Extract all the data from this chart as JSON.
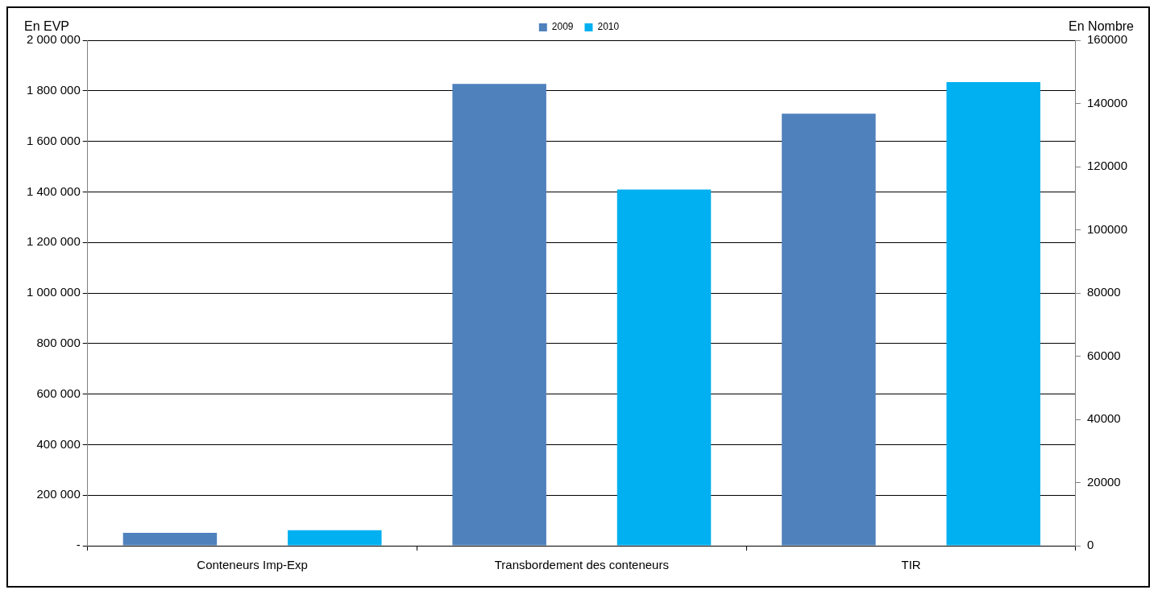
{
  "chart_data": {
    "type": "bar",
    "ylabel": "En EVP",
    "y2label": "En Nombre",
    "categories": [
      "Conteneurs Imp-Exp",
      "Transbordement des conteneurs",
      "TIR"
    ],
    "series": [
      {
        "name": "2009",
        "color": "#4f81bd",
        "values": [
          51000,
          1827000,
          1709000
        ]
      },
      {
        "name": "2010",
        "color": "#00b0f0",
        "values": [
          61000,
          1409000,
          1834000
        ]
      }
    ],
    "ylim": [
      0,
      2000000
    ],
    "yticks": [
      {
        "value": 0,
        "label": "-"
      },
      {
        "value": 200000,
        "label": "200 000"
      },
      {
        "value": 400000,
        "label": "400 000"
      },
      {
        "value": 600000,
        "label": "600 000"
      },
      {
        "value": 800000,
        "label": "800 000"
      },
      {
        "value": 1000000,
        "label": "1 000 000"
      },
      {
        "value": 1200000,
        "label": "1 200 000"
      },
      {
        "value": 1400000,
        "label": "1 400 000"
      },
      {
        "value": 1600000,
        "label": "1 600 000"
      },
      {
        "value": 1800000,
        "label": "1 800 000"
      },
      {
        "value": 2000000,
        "label": "2 000 000"
      }
    ],
    "y2lim": [
      0,
      160000
    ],
    "y2ticks": [
      0,
      20000,
      40000,
      60000,
      80000,
      100000,
      120000,
      140000,
      160000
    ],
    "grid": "y",
    "legend": "top"
  }
}
